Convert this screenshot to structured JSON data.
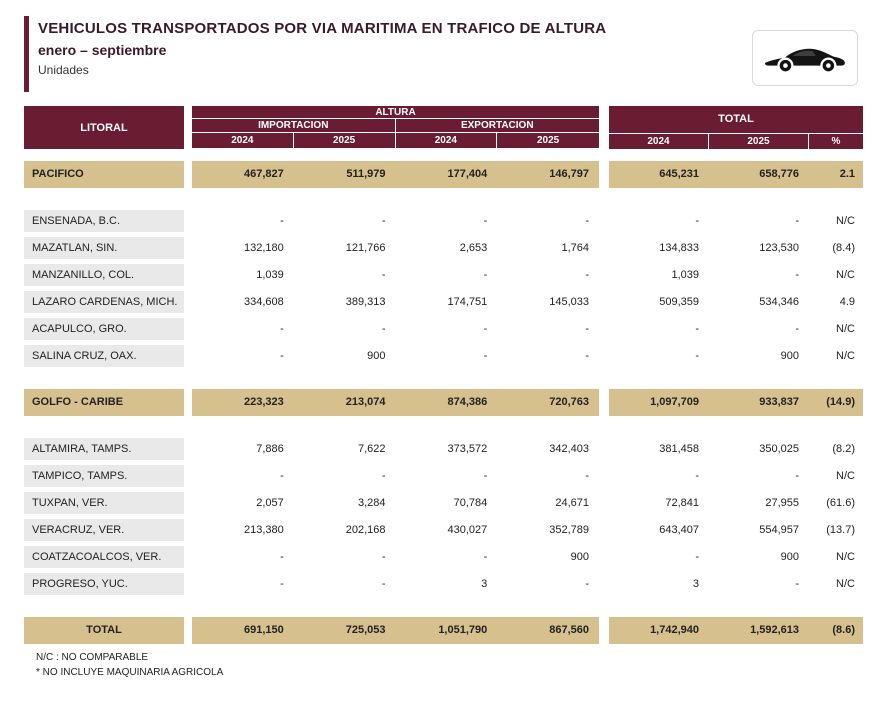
{
  "colors": {
    "maroon": "#691C32",
    "tan": "#D6C08E",
    "row_gray": "#E9E9E9",
    "title_text": "#3A1A29"
  },
  "chart_data": {
    "type": "table",
    "title": "VEHICULOS TRANSPORTADOS POR VIA MARITIMA EN TRAFICO DE ALTURA",
    "subtitle": "enero – septiembre",
    "units": "Unidades",
    "headers": {
      "litoral": "LITORAL",
      "altura": "ALTURA",
      "importacion": "IMPORTACION",
      "exportacion": "EXPORTACION",
      "altura_years": [
        "2024",
        "2025",
        "2024",
        "2025"
      ],
      "total": "TOTAL",
      "total_years": [
        "2024",
        "2025",
        "%"
      ]
    },
    "rows": [
      {
        "type": "section",
        "label": "PACIFICO",
        "values": [
          "467,827",
          "511,979",
          "177,404",
          "146,797"
        ],
        "totals": [
          "645,231",
          "658,776",
          "2.1"
        ]
      },
      {
        "type": "spacer"
      },
      {
        "type": "data",
        "label": "ENSENADA, B.C.",
        "values": [
          "-",
          "-",
          "-",
          "-"
        ],
        "totals": [
          "-",
          "-",
          "N/C"
        ]
      },
      {
        "type": "data",
        "label": "MAZATLAN, SIN.",
        "values": [
          "132,180",
          "121,766",
          "2,653",
          "1,764"
        ],
        "totals": [
          "134,833",
          "123,530",
          "(8.4)"
        ]
      },
      {
        "type": "data",
        "label": "MANZANILLO, COL.",
        "values": [
          "1,039",
          "-",
          "-",
          "-"
        ],
        "totals": [
          "1,039",
          "-",
          "N/C"
        ]
      },
      {
        "type": "data",
        "label": "LAZARO CARDENAS, MICH.",
        "values": [
          "334,608",
          "389,313",
          "174,751",
          "145,033"
        ],
        "totals": [
          "509,359",
          "534,346",
          "4.9"
        ]
      },
      {
        "type": "data",
        "label": "ACAPULCO, GRO.",
        "values": [
          "-",
          "-",
          "-",
          "-"
        ],
        "totals": [
          "-",
          "-",
          "N/C"
        ]
      },
      {
        "type": "data",
        "label": "SALINA CRUZ, OAX.",
        "values": [
          "-",
          "900",
          "-",
          "-"
        ],
        "totals": [
          "-",
          "900",
          "N/C"
        ]
      },
      {
        "type": "spacer"
      },
      {
        "type": "section",
        "label": "GOLFO - CARIBE",
        "values": [
          "223,323",
          "213,074",
          "874,386",
          "720,763"
        ],
        "totals": [
          "1,097,709",
          "933,837",
          "(14.9)"
        ]
      },
      {
        "type": "spacer"
      },
      {
        "type": "data",
        "label": "ALTAMIRA, TAMPS.",
        "values": [
          "7,886",
          "7,622",
          "373,572",
          "342,403"
        ],
        "totals": [
          "381,458",
          "350,025",
          "(8.2)"
        ]
      },
      {
        "type": "data",
        "label": "TAMPICO, TAMPS.",
        "values": [
          "-",
          "-",
          "-",
          "-"
        ],
        "totals": [
          "-",
          "-",
          "N/C"
        ]
      },
      {
        "type": "data",
        "label": "TUXPAN, VER.",
        "values": [
          "2,057",
          "3,284",
          "70,784",
          "24,671"
        ],
        "totals": [
          "72,841",
          "27,955",
          "(61.6)"
        ]
      },
      {
        "type": "data",
        "label": "VERACRUZ, VER.",
        "values": [
          "213,380",
          "202,168",
          "430,027",
          "352,789"
        ],
        "totals": [
          "643,407",
          "554,957",
          "(13.7)"
        ]
      },
      {
        "type": "data",
        "label": "COATZACOALCOS, VER.",
        "values": [
          "-",
          "-",
          "-",
          "900"
        ],
        "totals": [
          "-",
          "900",
          "N/C"
        ]
      },
      {
        "type": "data",
        "label": "PROGRESO, YUC.",
        "values": [
          "-",
          "-",
          "3",
          "-"
        ],
        "totals": [
          "3",
          "-",
          "N/C"
        ]
      },
      {
        "type": "spacer"
      },
      {
        "type": "total",
        "label": "TOTAL",
        "values": [
          "691,150",
          "725,053",
          "1,051,790",
          "867,560"
        ],
        "totals": [
          "1,742,940",
          "1,592,613",
          "(8.6)"
        ]
      }
    ]
  },
  "footnotes": [
    "N/C : NO COMPARABLE",
    "* NO INCLUYE  MAQUINARIA AGRICOLA"
  ]
}
